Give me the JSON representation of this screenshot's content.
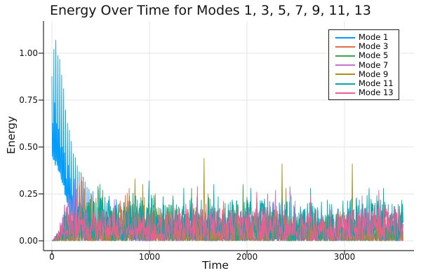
{
  "chart_data": {
    "type": "line",
    "title": "Energy Over Time for Modes 1, 3, 5, 7, 9, 11, 13",
    "xlabel": "Time",
    "ylabel": "Energy",
    "x_range": [
      0,
      3600
    ],
    "ylim": [
      -0.05,
      1.17
    ],
    "xlim": [
      -90,
      3710
    ],
    "xticks": [
      0,
      1000,
      2000,
      3000
    ],
    "xtick_labels": [
      "0",
      "1000",
      "2000",
      "3000"
    ],
    "yticks": [
      0,
      0.25,
      0.5,
      0.75,
      1.0
    ],
    "ytick_labels": [
      "0.00",
      "0.25",
      "0.50",
      "0.75",
      "1.00"
    ],
    "grid": true,
    "grid_color": "#e3e3e3",
    "axis_color": "#2a2a2e",
    "background": "#ffffff",
    "legend_position": "top-right",
    "dt": 4,
    "series": [
      {
        "name": "Mode 1",
        "color": "#009AFA",
        "seed": 101,
        "style": "decaying-oscillation",
        "peak_value": 1.13,
        "peak_time": 35,
        "envelope": [
          [
            0,
            0.92
          ],
          [
            35,
            1.13
          ],
          [
            90,
            0.95
          ],
          [
            150,
            0.7
          ],
          [
            210,
            0.5
          ],
          [
            280,
            0.4
          ],
          [
            360,
            0.3
          ],
          [
            450,
            0.25
          ],
          [
            600,
            0.2
          ],
          [
            800,
            0.17
          ],
          [
            1200,
            0.15
          ],
          [
            2000,
            0.13
          ],
          [
            2800,
            0.13
          ],
          [
            3600,
            0.11
          ]
        ],
        "floor": [
          [
            0,
            0.42
          ],
          [
            80,
            0.35
          ],
          [
            150,
            0.2
          ],
          [
            220,
            0.1
          ],
          [
            300,
            0.04
          ],
          [
            380,
            0.01
          ],
          [
            450,
            0
          ],
          [
            3600,
            0
          ]
        ],
        "pow": 2.0,
        "spikes": [
          [
            660,
            0.22
          ],
          [
            1180,
            0.18
          ],
          [
            1260,
            0.16
          ]
        ]
      },
      {
        "name": "Mode 3",
        "color": "#E36F47",
        "seed": 202,
        "style": "noise",
        "envelope": [
          [
            0,
            0.06
          ],
          [
            150,
            0.18
          ],
          [
            250,
            0.3
          ],
          [
            310,
            0.34
          ],
          [
            420,
            0.26
          ],
          [
            550,
            0.16
          ],
          [
            750,
            0.26
          ],
          [
            900,
            0.22
          ],
          [
            1100,
            0.14
          ],
          [
            1500,
            0.14
          ],
          [
            1750,
            0.2
          ],
          [
            1900,
            0.16
          ],
          [
            2300,
            0.12
          ],
          [
            2800,
            0.12
          ],
          [
            3200,
            0.13
          ],
          [
            3600,
            0.11
          ]
        ],
        "pow": 2.0,
        "spikes": [
          [
            300,
            0.35
          ],
          [
            790,
            0.28
          ],
          [
            1760,
            0.21
          ]
        ]
      },
      {
        "name": "Mode 5",
        "color": "#3DA44E",
        "seed": 303,
        "style": "noise",
        "envelope": [
          [
            0,
            0.06
          ],
          [
            200,
            0.12
          ],
          [
            380,
            0.22
          ],
          [
            480,
            0.28
          ],
          [
            560,
            0.22
          ],
          [
            700,
            0.14
          ],
          [
            900,
            0.16
          ],
          [
            1100,
            0.18
          ],
          [
            1250,
            0.2
          ],
          [
            1500,
            0.14
          ],
          [
            1800,
            0.18
          ],
          [
            1960,
            0.26
          ],
          [
            2100,
            0.16
          ],
          [
            2400,
            0.14
          ],
          [
            2700,
            0.16
          ],
          [
            3000,
            0.12
          ],
          [
            3300,
            0.16
          ],
          [
            3600,
            0.12
          ]
        ],
        "pow": 2.2,
        "spikes": [
          [
            470,
            0.29
          ],
          [
            520,
            0.27
          ],
          [
            1240,
            0.24
          ],
          [
            1430,
            0.28
          ],
          [
            1960,
            0.3
          ],
          [
            3310,
            0.2
          ]
        ]
      },
      {
        "name": "Mode 7",
        "color": "#C371D2",
        "seed": 404,
        "style": "noise",
        "envelope": [
          [
            0,
            0.07
          ],
          [
            180,
            0.26
          ],
          [
            260,
            0.3
          ],
          [
            340,
            0.16
          ],
          [
            500,
            0.12
          ],
          [
            700,
            0.18
          ],
          [
            900,
            0.12
          ],
          [
            1200,
            0.14
          ],
          [
            1500,
            0.16
          ],
          [
            1800,
            0.12
          ],
          [
            2100,
            0.16
          ],
          [
            2300,
            0.24
          ],
          [
            2420,
            0.28
          ],
          [
            2550,
            0.18
          ],
          [
            2800,
            0.12
          ],
          [
            3100,
            0.2
          ],
          [
            3300,
            0.18
          ],
          [
            3600,
            0.13
          ]
        ],
        "pow": 2.2,
        "spikes": [
          [
            230,
            0.33
          ],
          [
            640,
            0.22
          ],
          [
            2290,
            0.27
          ],
          [
            2440,
            0.29
          ],
          [
            3180,
            0.24
          ]
        ]
      },
      {
        "name": "Mode 9",
        "color": "#AC8E18",
        "seed": 505,
        "style": "noise",
        "envelope": [
          [
            0,
            0.04
          ],
          [
            300,
            0.08
          ],
          [
            600,
            0.14
          ],
          [
            800,
            0.26
          ],
          [
            950,
            0.24
          ],
          [
            1100,
            0.18
          ],
          [
            1300,
            0.14
          ],
          [
            1480,
            0.2
          ],
          [
            1700,
            0.12
          ],
          [
            2000,
            0.14
          ],
          [
            2250,
            0.18
          ],
          [
            2450,
            0.14
          ],
          [
            2700,
            0.12
          ],
          [
            2950,
            0.16
          ],
          [
            3150,
            0.12
          ],
          [
            3400,
            0.14
          ],
          [
            3600,
            0.12
          ]
        ],
        "pow": 2.4,
        "spikes": [
          [
            850,
            0.33
          ],
          [
            930,
            0.3
          ],
          [
            1060,
            0.25
          ],
          [
            1560,
            0.44
          ],
          [
            1600,
            0.25
          ],
          [
            2360,
            0.41
          ],
          [
            2400,
            0.28
          ],
          [
            3080,
            0.41
          ],
          [
            3120,
            0.18
          ],
          [
            3580,
            0.15
          ]
        ]
      },
      {
        "name": "Mode 11",
        "color": "#00A9AD",
        "seed": 606,
        "style": "noise",
        "envelope": [
          [
            0,
            0.08
          ],
          [
            150,
            0.18
          ],
          [
            300,
            0.22
          ],
          [
            500,
            0.24
          ],
          [
            800,
            0.24
          ],
          [
            1000,
            0.26
          ],
          [
            1300,
            0.22
          ],
          [
            1600,
            0.24
          ],
          [
            1900,
            0.22
          ],
          [
            2200,
            0.24
          ],
          [
            2500,
            0.24
          ],
          [
            2800,
            0.22
          ],
          [
            3100,
            0.25
          ],
          [
            3400,
            0.25
          ],
          [
            3600,
            0.22
          ]
        ],
        "pow": 1.7,
        "spikes": [
          [
            490,
            0.3
          ],
          [
            995,
            0.32
          ],
          [
            1350,
            0.28
          ],
          [
            1660,
            0.3
          ],
          [
            2040,
            0.28
          ],
          [
            2650,
            0.28
          ],
          [
            3250,
            0.28
          ],
          [
            3400,
            0.28
          ]
        ]
      },
      {
        "name": "Mode 13",
        "color": "#ED5D92",
        "seed": 707,
        "style": "noise",
        "envelope": [
          [
            0,
            0.08
          ],
          [
            150,
            0.16
          ],
          [
            400,
            0.17
          ],
          [
            800,
            0.15
          ],
          [
            1200,
            0.18
          ],
          [
            1470,
            0.22
          ],
          [
            1800,
            0.16
          ],
          [
            2100,
            0.2
          ],
          [
            2400,
            0.16
          ],
          [
            2700,
            0.17
          ],
          [
            3000,
            0.16
          ],
          [
            3350,
            0.2
          ],
          [
            3600,
            0.18
          ]
        ],
        "pow": 1.5,
        "spikes": [
          [
            1490,
            0.29
          ],
          [
            2100,
            0.26
          ],
          [
            2210,
            0.25
          ],
          [
            2650,
            0.24
          ],
          [
            3350,
            0.27
          ]
        ]
      }
    ]
  }
}
